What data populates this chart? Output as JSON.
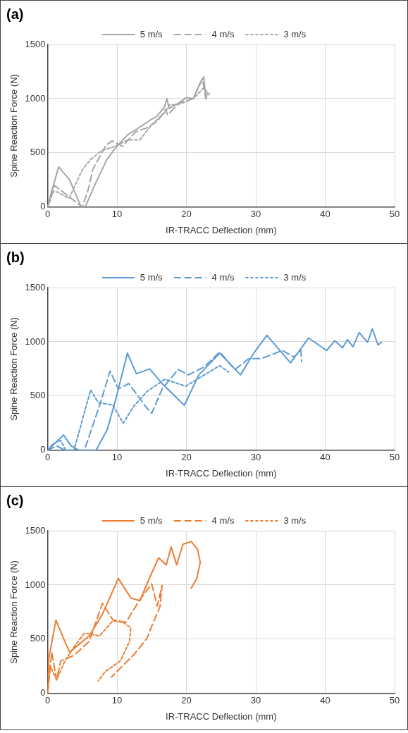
{
  "chart_data": [
    {
      "type": "line",
      "title": "(a)",
      "xlabel": "IR-TRACC Deflection (mm)",
      "ylabel": "Spine Reaction Force (N)",
      "xlim": [
        0,
        50
      ],
      "xticks": [
        0,
        10,
        20,
        30,
        40,
        50
      ],
      "ylim": [
        0,
        1500
      ],
      "yticks": [
        0,
        500,
        1000,
        1500
      ],
      "grid": true,
      "legend": "top",
      "marker": "none",
      "series": [
        {
          "name": "5 m/s",
          "color": "#a6a6a6",
          "line_style": "solid",
          "x": [
            0,
            0.6,
            1.6,
            3.2,
            4.8,
            5.4,
            7.1,
            8.6,
            10.1,
            11.6,
            12.9,
            14.6,
            15.7,
            16.8,
            17.2,
            17.5,
            18.9,
            20,
            21,
            22,
            22.5,
            22.8,
            23
          ],
          "values": [
            0,
            150,
            370,
            250,
            5,
            0,
            245,
            445,
            570,
            670,
            720,
            795,
            835,
            920,
            1000,
            910,
            960,
            1010,
            1000,
            1150,
            1200,
            1000,
            1050
          ]
        },
        {
          "name": "4 m/s",
          "color": "#a6a6a6",
          "line_style": "dashed",
          "x": [
            0,
            0.5,
            1,
            3,
            5,
            5.9,
            6.5,
            8.4,
            9.3,
            10.8,
            12.7,
            14.3,
            15.9,
            17,
            17.3,
            19,
            21,
            22.3,
            22.8,
            23.3
          ],
          "values": [
            0,
            80,
            200,
            100,
            0,
            170,
            345,
            570,
            610,
            560,
            695,
            730,
            795,
            900,
            850,
            960,
            1000,
            1180,
            1000,
            1050
          ]
        },
        {
          "name": "3 m/s",
          "color": "#a6a6a6",
          "line_style": "dotted",
          "x": [
            0,
            0.7,
            1.4,
            3.1,
            5,
            6.3,
            7.8,
            9.7,
            11.6,
            13.3,
            15,
            17,
            17.5,
            19,
            21,
            22.5,
            23
          ],
          "values": [
            0,
            140,
            140,
            80,
            345,
            445,
            520,
            560,
            620,
            620,
            760,
            880,
            940,
            950,
            1000,
            1100,
            1060
          ]
        }
      ]
    },
    {
      "type": "line",
      "title": "(b)",
      "xlabel": "IR-TRACC Deflection (mm)",
      "ylabel": "Spine Reaction Force (N)",
      "xlim": [
        0,
        50
      ],
      "xticks": [
        0,
        10,
        20,
        30,
        40,
        50
      ],
      "ylim": [
        0,
        1500
      ],
      "yticks": [
        0,
        500,
        1000,
        1500
      ],
      "grid": true,
      "legend": "top",
      "marker": "none",
      "series": [
        {
          "name": "5 m/s",
          "color": "#5b9bd5",
          "line_style": "solid",
          "x": [
            0,
            2.3,
            3.4,
            4.5,
            7,
            8.6,
            9.8,
            11.5,
            12.8,
            14.7,
            16.5,
            19.7,
            21.8,
            24.8,
            27.8,
            29.7,
            31.6,
            35,
            37.6,
            40.2,
            41.4,
            42.5,
            43.2,
            44,
            44.9,
            46.1,
            46.8,
            47.6,
            48.1
          ],
          "values": [
            0,
            140,
            40,
            0,
            0,
            190,
            465,
            895,
            705,
            750,
            615,
            415,
            695,
            895,
            695,
            895,
            1060,
            805,
            1035,
            920,
            1010,
            945,
            1020,
            955,
            1085,
            995,
            1120,
            970,
            995
          ]
        },
        {
          "name": "4 m/s",
          "color": "#5b9bd5",
          "line_style": "dashed",
          "x": [
            0,
            1.3,
            2.5,
            5.3,
            7.5,
            9,
            10.2,
            11.7,
            14.3,
            15,
            16.5,
            18.8,
            20.3,
            22.6,
            24.8,
            27,
            29,
            30.8,
            33.8,
            35.5,
            36.5,
            36.6
          ],
          "values": [
            0,
            40,
            0,
            0,
            415,
            730,
            565,
            615,
            390,
            340,
            565,
            745,
            695,
            770,
            905,
            745,
            845,
            845,
            920,
            860,
            920,
            820
          ]
        },
        {
          "name": "3 m/s",
          "color": "#5b9bd5",
          "line_style": "dotted",
          "x": [
            0,
            0.8,
            1.9,
            2.6,
            3.8,
            6.2,
            7.3,
            9.4,
            10.9,
            12.4,
            14.3,
            16.9,
            19.9,
            22.6,
            24.8,
            26.1
          ],
          "values": [
            0,
            60,
            90,
            0,
            0,
            555,
            440,
            415,
            250,
            405,
            540,
            655,
            590,
            695,
            780,
            720
          ]
        }
      ]
    },
    {
      "type": "line",
      "title": "(c)",
      "xlabel": "IR-TRACC Deflection (mm)",
      "ylabel": "Spine Reaction Force (N)",
      "xlim": [
        0,
        50
      ],
      "xticks": [
        0,
        10,
        20,
        30,
        40,
        50
      ],
      "ylim": [
        0,
        1500
      ],
      "yticks": [
        0,
        500,
        1000,
        1500
      ],
      "grid": true,
      "legend": "top",
      "marker": "none",
      "series": [
        {
          "name": "5 m/s",
          "color": "#ed7d31",
          "line_style": "solid",
          "x": [
            0,
            0.2,
            1.2,
            2.3,
            3.2,
            4.1,
            6,
            7.9,
            10.2,
            12,
            13.3,
            15,
            16,
            17.1,
            17.8,
            18.6,
            19.5,
            20.7,
            21.6,
            22,
            21.5,
            20.7
          ],
          "values": [
            0,
            330,
            675,
            505,
            380,
            430,
            530,
            730,
            1060,
            880,
            855,
            1110,
            1250,
            1185,
            1350,
            1185,
            1375,
            1400,
            1330,
            1210,
            1060,
            970
          ]
        },
        {
          "name": "4 m/s",
          "color": "#ed7d31",
          "line_style": "dashed",
          "x": [
            0,
            0.6,
            1.3,
            1.9,
            3.8,
            6,
            7.9,
            9.4,
            11.3,
            13.2,
            15,
            15.8,
            16.5,
            16.2,
            15.2,
            14.3,
            12.4,
            9.2
          ],
          "values": [
            0,
            380,
            125,
            300,
            350,
            480,
            830,
            680,
            655,
            855,
            1010,
            805,
            995,
            800,
            650,
            505,
            355,
            150
          ]
        },
        {
          "name": "3 m/s",
          "color": "#ed7d31",
          "line_style": "dotted",
          "x": [
            0,
            0.4,
            1.3,
            2.5,
            4.1,
            5.3,
            7.5,
            9.4,
            10.9,
            12,
            11.8,
            10.5,
            8.3,
            7.3
          ],
          "values": [
            0,
            250,
            125,
            300,
            455,
            555,
            530,
            670,
            655,
            605,
            480,
            300,
            200,
            115
          ]
        }
      ]
    }
  ]
}
